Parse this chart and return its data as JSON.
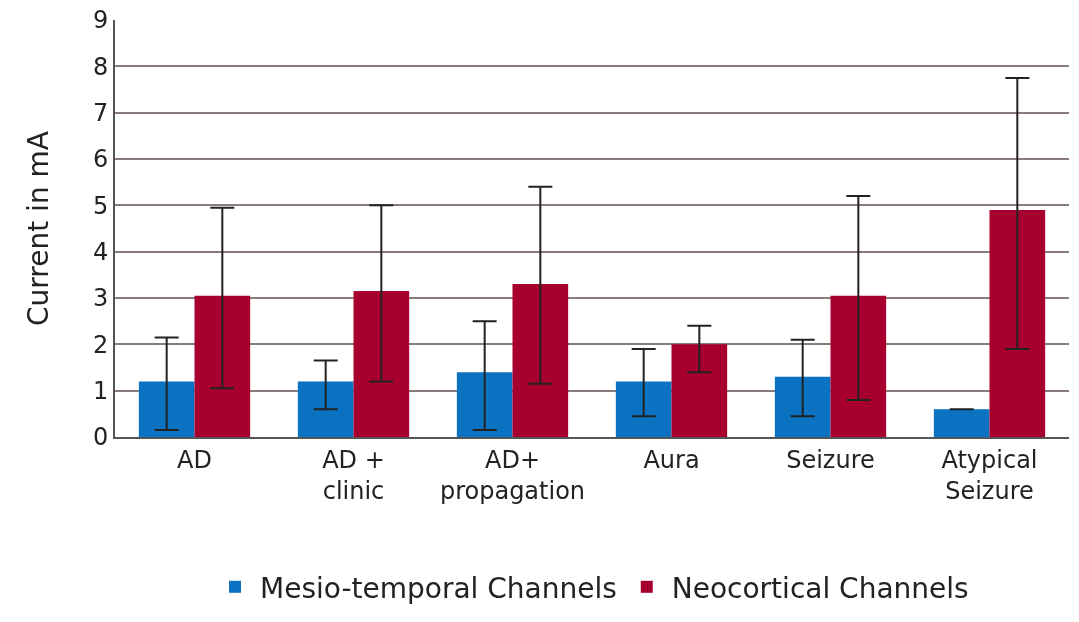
{
  "chart_data": {
    "type": "bar",
    "ylabel": "Current in mA",
    "categories": [
      "AD",
      "AD +\nclinic",
      "AD+\npropagation",
      "Aura",
      "Seizure",
      "Atypical\nSeizure"
    ],
    "series": [
      {
        "name": "Mesio-temporal Channels",
        "color": "#0a72c0",
        "values": [
          1.2,
          1.2,
          1.4,
          1.2,
          1.3,
          0.6
        ],
        "errors": [
          [
            0.15,
            2.15
          ],
          [
            0.6,
            1.65
          ],
          [
            0.15,
            2.5
          ],
          [
            0.45,
            1.9
          ],
          [
            0.45,
            2.1
          ],
          null
        ]
      },
      {
        "name": "Neocortical Channels",
        "color": "#a8002e",
        "values": [
          3.05,
          3.15,
          3.3,
          2.0,
          3.05,
          4.9
        ],
        "errors": [
          [
            1.05,
            4.95
          ],
          [
            1.2,
            5.0
          ],
          [
            1.15,
            5.4
          ],
          [
            1.4,
            2.4
          ],
          [
            0.8,
            5.2
          ],
          [
            1.9,
            7.75
          ]
        ]
      }
    ],
    "ylim": [
      0,
      9
    ],
    "yticks": [
      0,
      1,
      2,
      3,
      4,
      5,
      6,
      7,
      8,
      9
    ],
    "grid": "y",
    "legend": "bottom"
  }
}
